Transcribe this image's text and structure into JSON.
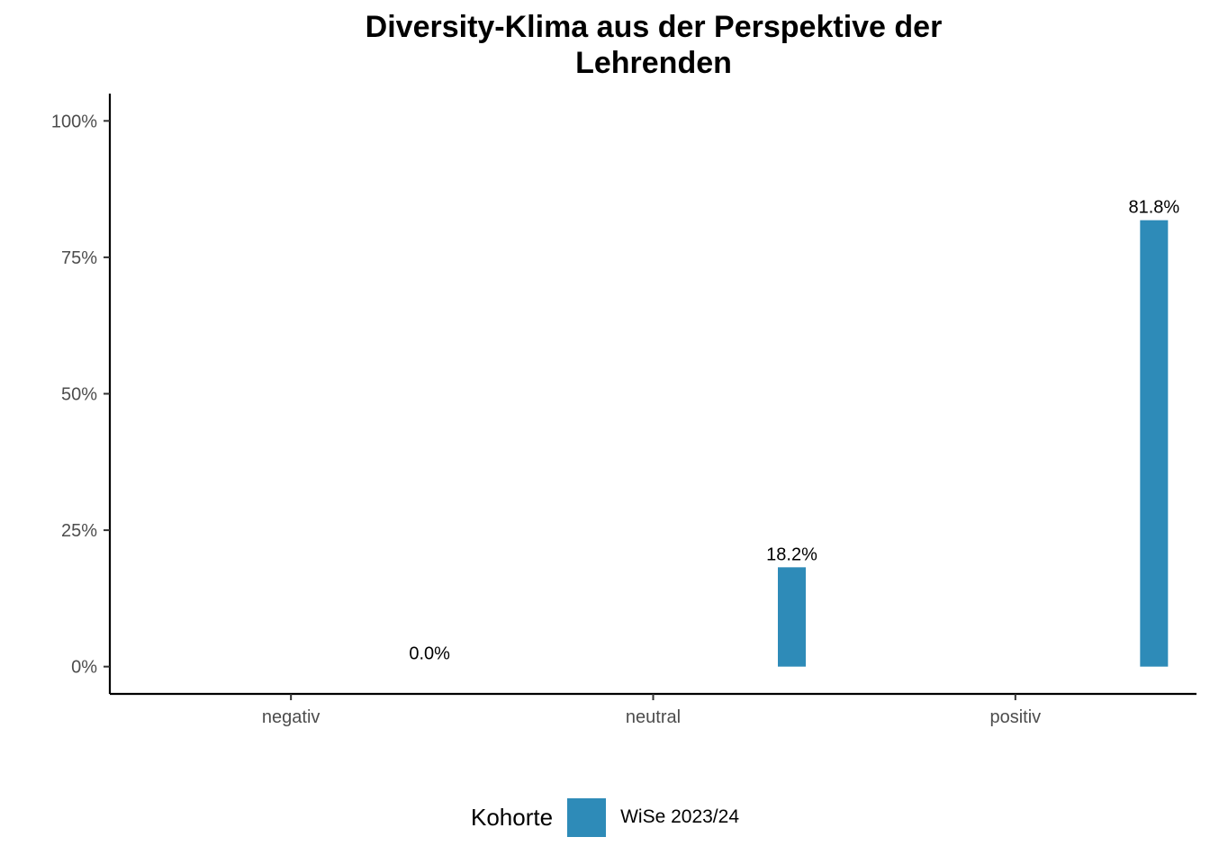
{
  "chart_data": {
    "type": "bar",
    "title": "Diversity-Klima aus der Perspektive der\nLehrenden",
    "categories": [
      "negativ",
      "neutral",
      "positiv"
    ],
    "series": [
      {
        "name": "WiSe 2023/24",
        "values": [
          0.0,
          18.2,
          81.8
        ],
        "labels": [
          "0.0%",
          "18.2%",
          "81.8%"
        ],
        "color": "#2E8BB8"
      }
    ],
    "ylim": [
      -5,
      105
    ],
    "yticks": [
      0,
      25,
      50,
      75,
      100
    ],
    "ytick_labels": [
      "0%",
      "25%",
      "50%",
      "75%",
      "100%"
    ],
    "xlabel": "",
    "ylabel": "",
    "grid": false,
    "legend": {
      "title": "Kohorte",
      "position": "bottom"
    }
  }
}
